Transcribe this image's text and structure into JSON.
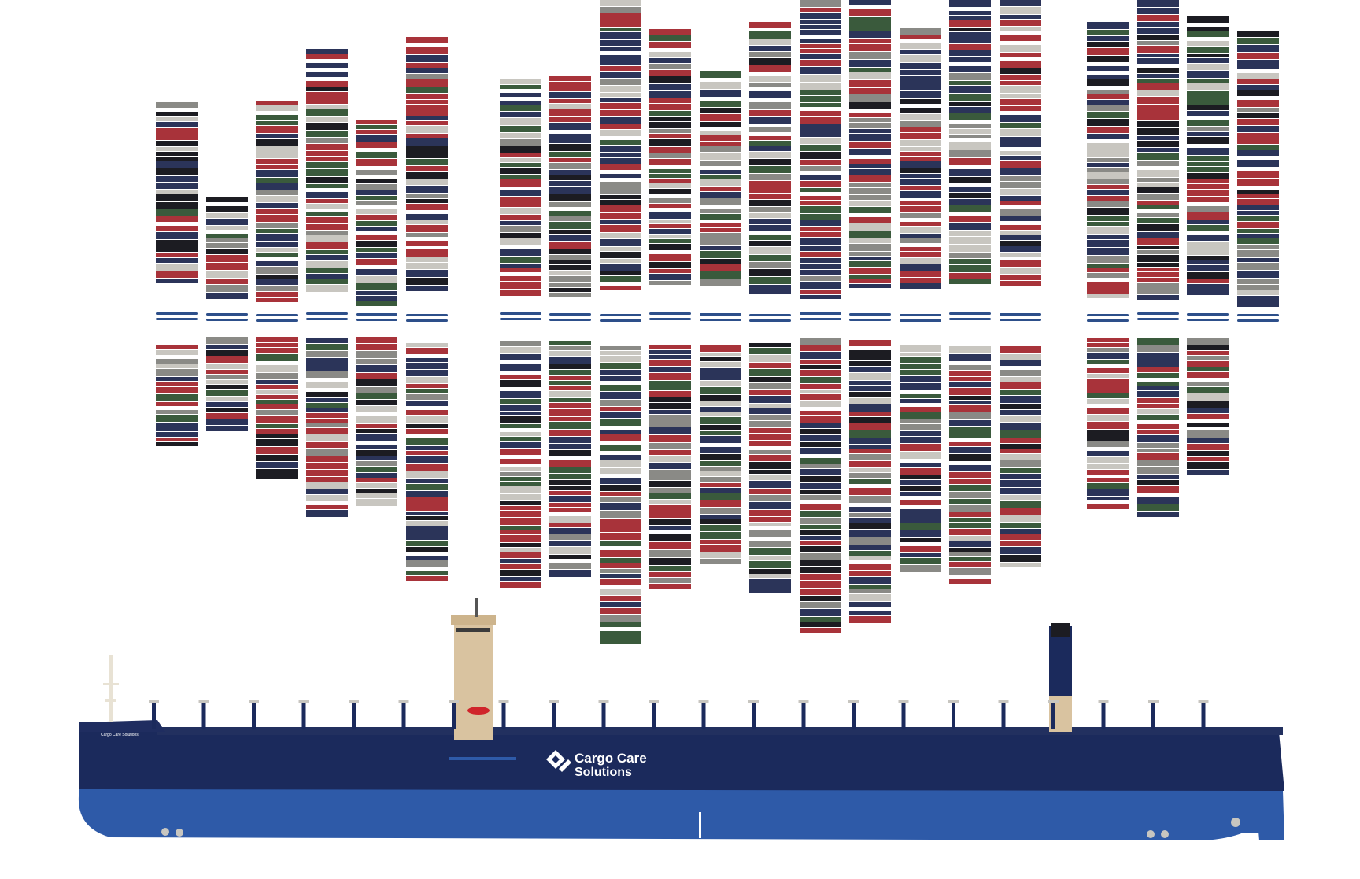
{
  "brand": {
    "name_line1": "Cargo",
    "name_line1b": "Care",
    "name_line2": "Solutions",
    "bow_name": "Cargo Care Solutions"
  },
  "colors": {
    "hull_dark": "#1b2a5c",
    "hull_lower": "#2e5aa8",
    "superstructure": "#d9c3a0",
    "lifeboat": "#d0252b",
    "container_red": "#a8333a",
    "container_green": "#3a5a3c",
    "container_navy": "#2b3459",
    "container_black": "#1c1c22",
    "container_grey": "#8a8a86",
    "container_light": "#c8c6c0",
    "hatch_blue": "#2d4f8a"
  },
  "layout_note_values": {
    "stack_count_left_group": 6,
    "stack_count_middle_group": 11,
    "stack_count_right_group": 4
  }
}
